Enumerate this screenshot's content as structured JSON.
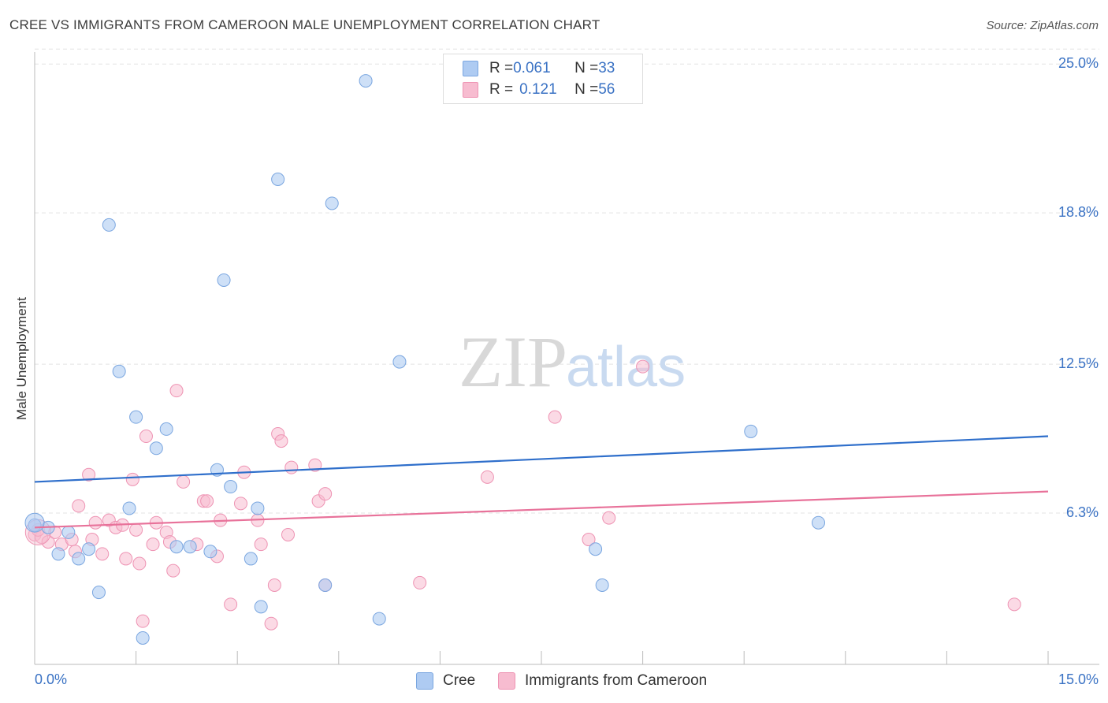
{
  "title": "CREE VS IMMIGRANTS FROM CAMEROON MALE UNEMPLOYMENT CORRELATION CHART",
  "source": "Source: ZipAtlas.com",
  "watermark": {
    "zip": "ZIP",
    "atlas": "atlas"
  },
  "legend": {
    "rows": [
      {
        "r_label": "R = ",
        "r_value": "0.061",
        "n_label": "N = ",
        "n_value": "33"
      },
      {
        "r_label": "R = ",
        "r_value": "0.121",
        "n_label": "N = ",
        "n_value": "56"
      }
    ]
  },
  "bottom_legend": {
    "series1": "Cree",
    "series2": "Immigrants from Cameroon"
  },
  "colors": {
    "cree_fill": "#aecbf2",
    "cree_stroke": "#7aa6e0",
    "cree_line": "#2f6fcb",
    "cam_fill": "#f7bcd0",
    "cam_stroke": "#ee93b3",
    "cam_line": "#e8729a",
    "tick_label": "#3a72c4",
    "grid": "#e3e3e3"
  },
  "chart_data": {
    "type": "scatter",
    "title": "CREE VS IMMIGRANTS FROM CAMEROON MALE UNEMPLOYMENT CORRELATION CHART",
    "xlabel": "",
    "ylabel": "Male Unemployment",
    "xlim": [
      0,
      15
    ],
    "ylim": [
      0,
      25.5
    ],
    "x_tick_labels": [
      "0.0%",
      "15.0%"
    ],
    "y_ticks": [
      6.3,
      12.5,
      18.8,
      25.0
    ],
    "y_tick_labels": [
      "6.3%",
      "12.5%",
      "18.8%",
      "25.0%"
    ],
    "grid": "horizontal dashed",
    "legend_position": "top-center",
    "series": [
      {
        "name": "Cree",
        "r": 0.061,
        "n": 33,
        "trend": [
          [
            0,
            7.6
          ],
          [
            15,
            9.5
          ]
        ],
        "points": [
          [
            0.0,
            5.8
          ],
          [
            0.2,
            5.7
          ],
          [
            0.35,
            4.6
          ],
          [
            0.5,
            5.5
          ],
          [
            0.65,
            4.4
          ],
          [
            0.8,
            4.8
          ],
          [
            0.95,
            3.0
          ],
          [
            1.1,
            18.3
          ],
          [
            1.25,
            12.2
          ],
          [
            1.4,
            6.5
          ],
          [
            1.5,
            10.3
          ],
          [
            1.6,
            1.1
          ],
          [
            1.8,
            9.0
          ],
          [
            1.95,
            9.8
          ],
          [
            2.1,
            4.9
          ],
          [
            2.3,
            4.9
          ],
          [
            2.6,
            4.7
          ],
          [
            2.7,
            8.1
          ],
          [
            2.8,
            16.0
          ],
          [
            2.9,
            7.4
          ],
          [
            3.2,
            4.4
          ],
          [
            3.3,
            6.5
          ],
          [
            3.35,
            2.4
          ],
          [
            3.6,
            20.2
          ],
          [
            4.3,
            3.3
          ],
          [
            4.4,
            19.2
          ],
          [
            4.9,
            24.3
          ],
          [
            5.1,
            1.9
          ],
          [
            5.4,
            12.6
          ],
          [
            8.3,
            4.8
          ],
          [
            8.4,
            3.3
          ],
          [
            10.6,
            9.7
          ],
          [
            11.6,
            5.9
          ]
        ]
      },
      {
        "name": "Immigrants from Cameroon",
        "r": 0.121,
        "n": 56,
        "trend": [
          [
            0,
            5.7
          ],
          [
            15,
            7.2
          ]
        ],
        "points": [
          [
            0.0,
            5.4
          ],
          [
            0.1,
            5.3
          ],
          [
            0.2,
            5.1
          ],
          [
            0.3,
            5.5
          ],
          [
            0.4,
            5.0
          ],
          [
            0.55,
            5.2
          ],
          [
            0.6,
            4.7
          ],
          [
            0.65,
            6.6
          ],
          [
            0.8,
            7.9
          ],
          [
            0.85,
            5.2
          ],
          [
            0.9,
            5.9
          ],
          [
            1.0,
            4.6
          ],
          [
            1.1,
            6.0
          ],
          [
            1.2,
            5.7
          ],
          [
            1.3,
            5.8
          ],
          [
            1.35,
            4.4
          ],
          [
            1.45,
            7.7
          ],
          [
            1.55,
            4.2
          ],
          [
            1.6,
            1.8
          ],
          [
            1.65,
            9.5
          ],
          [
            1.75,
            5.0
          ],
          [
            1.8,
            5.9
          ],
          [
            1.95,
            5.5
          ],
          [
            2.0,
            5.1
          ],
          [
            2.05,
            3.9
          ],
          [
            2.1,
            11.4
          ],
          [
            2.2,
            7.6
          ],
          [
            2.4,
            5.0
          ],
          [
            2.5,
            6.8
          ],
          [
            2.55,
            6.8
          ],
          [
            2.7,
            4.5
          ],
          [
            2.75,
            6.0
          ],
          [
            2.9,
            2.5
          ],
          [
            3.05,
            6.7
          ],
          [
            3.1,
            8.0
          ],
          [
            3.3,
            6.0
          ],
          [
            3.35,
            5.0
          ],
          [
            3.5,
            1.7
          ],
          [
            3.55,
            3.3
          ],
          [
            3.6,
            9.6
          ],
          [
            3.65,
            9.3
          ],
          [
            3.75,
            5.4
          ],
          [
            3.8,
            8.2
          ],
          [
            4.15,
            8.3
          ],
          [
            4.2,
            6.8
          ],
          [
            4.3,
            7.1
          ],
          [
            4.3,
            3.3
          ],
          [
            5.7,
            3.4
          ],
          [
            6.7,
            7.8
          ],
          [
            7.7,
            10.3
          ],
          [
            8.2,
            5.2
          ],
          [
            8.5,
            6.1
          ],
          [
            9.0,
            12.4
          ],
          [
            14.5,
            2.5
          ],
          [
            0.05,
            5.6
          ],
          [
            1.5,
            5.6
          ]
        ]
      }
    ]
  }
}
